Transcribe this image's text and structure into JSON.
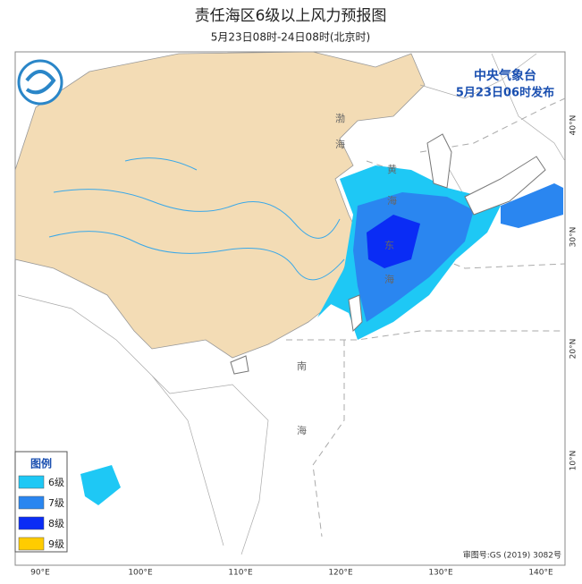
{
  "header": {
    "title": "责任海区6级以上风力预报图",
    "subtitle": "5月23日08时-24日08时(北京时)"
  },
  "issuer": {
    "agency": "中央气象台",
    "issued": "5月23日06时发布"
  },
  "legend": {
    "title": "图例",
    "items": [
      {
        "label": "6级",
        "color": "#1ec8f5"
      },
      {
        "label": "7级",
        "color": "#2a86f0"
      },
      {
        "label": "8级",
        "color": "#0a2cf5"
      },
      {
        "label": "9级",
        "color": "#ffcc00"
      }
    ]
  },
  "longitude_labels": [
    "90°E",
    "100°E",
    "110°E",
    "120°E",
    "130°E",
    "140°E"
  ],
  "latitude_labels": [
    "40°N",
    "30°N",
    "20°N",
    "10°N"
  ],
  "sea_labels": [
    "黄",
    "海",
    "东",
    "海",
    "南",
    "海",
    "渤",
    "海"
  ],
  "review_number": "审图号:GS (2019) 3082号"
}
